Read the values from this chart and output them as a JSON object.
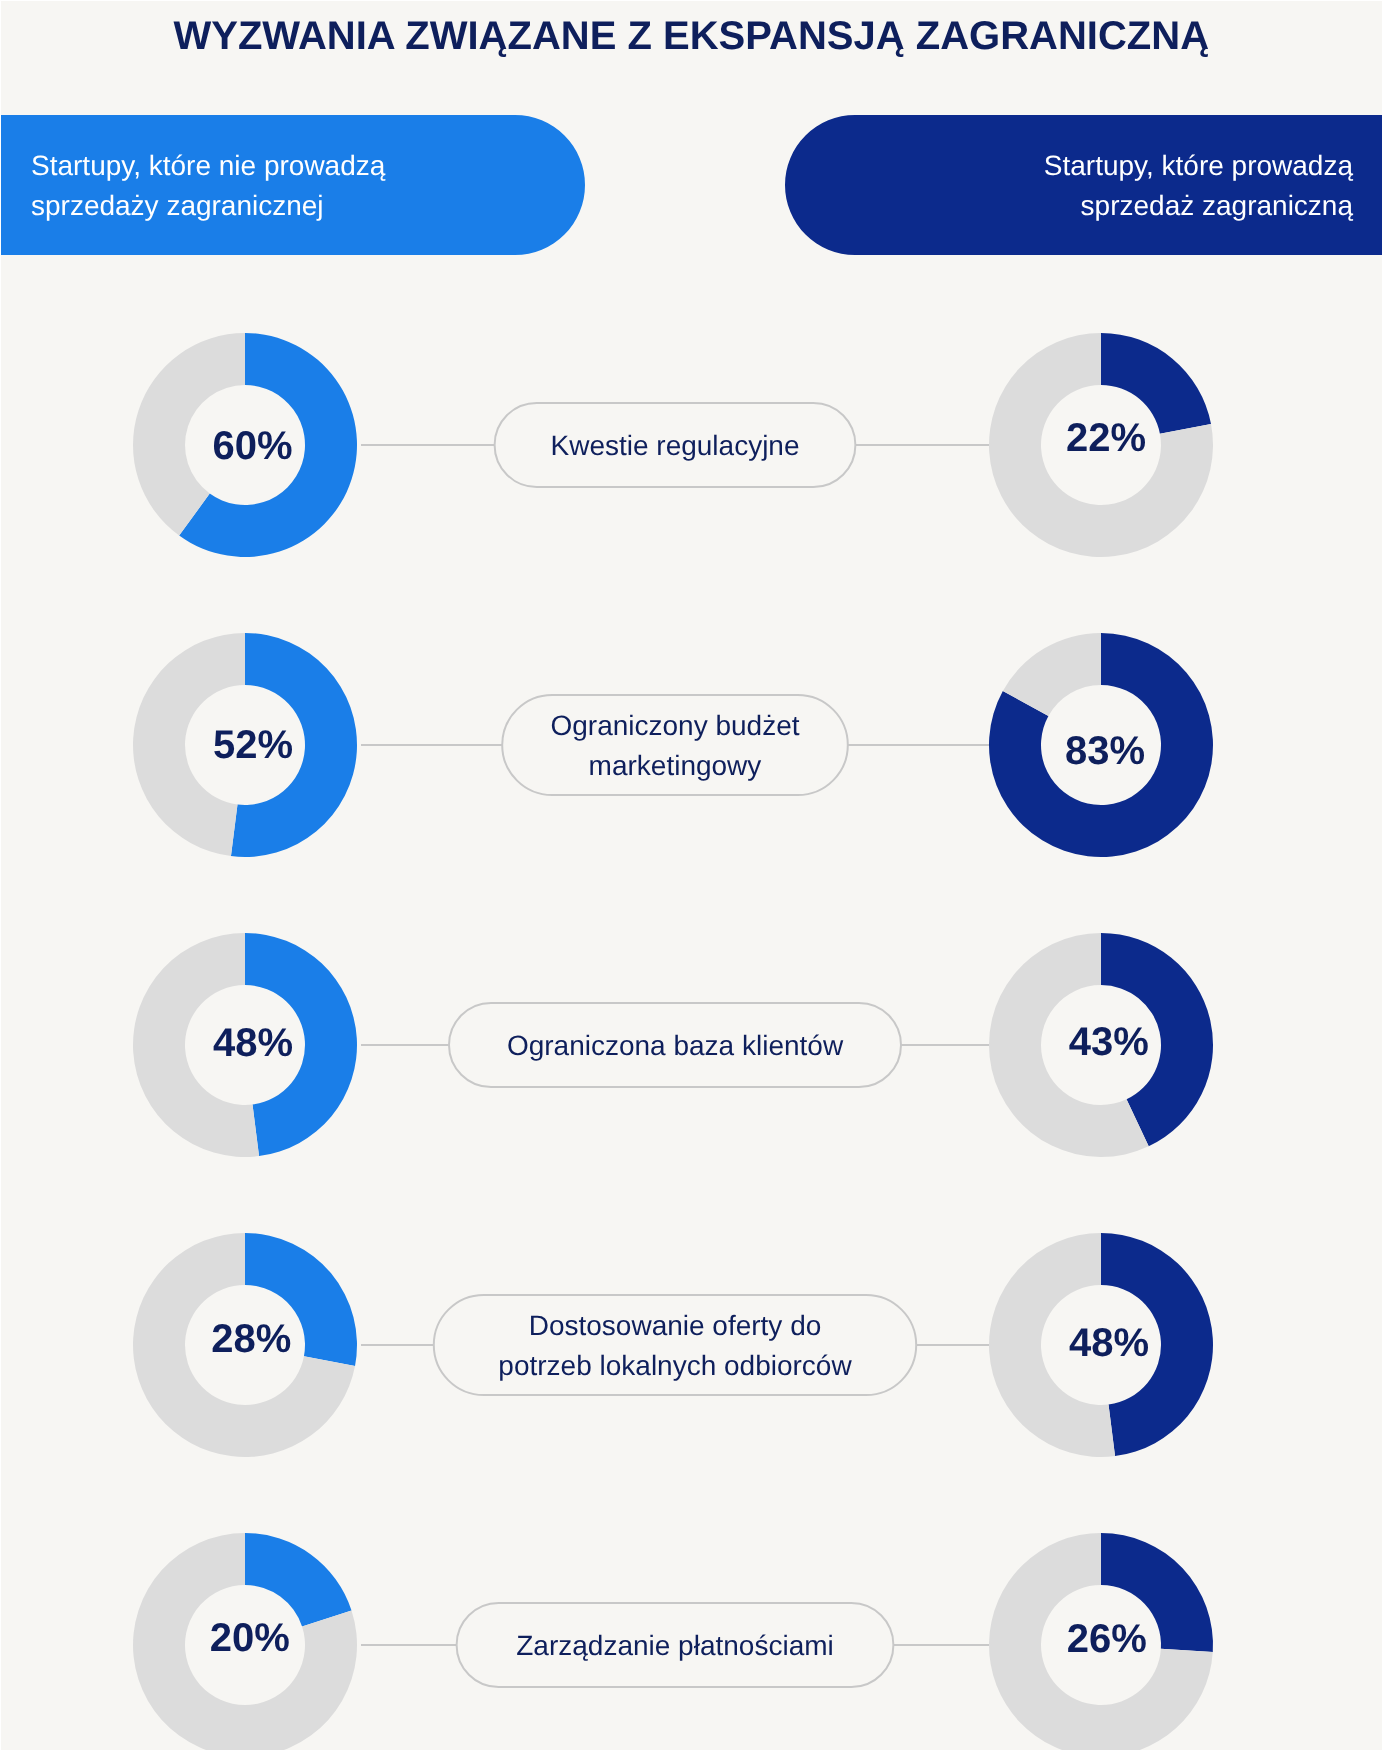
{
  "chart_data": [
    {
      "type": "other",
      "title": "WYZWANIA ZWIĄZANE Z EKSPANSJĄ ZAGRANICZNĄ",
      "annotations": [
        "Startupy, które nie prowadzą\nsprzedaży zagranicznej",
        "Startupy, które prowadzą\nsprzedaż zagraniczną",
        "Kwestie regulacyjne",
        "Ograniczony budżet\nmarketingowy",
        "Ograniczona baza klientów",
        "Dostosowanie oferty do\npotrzeb lokalnych odbiorców",
        "Zarządzanie płatnościami"
      ]
    },
    {
      "type": "donut",
      "categories": [
        null,
        null
      ],
      "values": [
        60,
        40
      ],
      "colors": [
        "#1a7ee8",
        "#dcdcdc"
      ],
      "value_labels": [
        "60%",
        null
      ]
    },
    {
      "type": "donut",
      "categories": [
        null,
        null
      ],
      "values": [
        22,
        78
      ],
      "colors": [
        "#0c2a8c",
        "#dcdcdc"
      ],
      "value_labels": [
        "22%",
        null
      ]
    },
    {
      "type": "donut",
      "categories": [
        null,
        null
      ],
      "values": [
        52,
        48
      ],
      "colors": [
        "#1a7ee8",
        "#dcdcdc"
      ],
      "value_labels": [
        "52%",
        null
      ]
    },
    {
      "type": "donut",
      "categories": [
        null,
        null
      ],
      "values": [
        83,
        17
      ],
      "colors": [
        "#0c2a8c",
        "#dcdcdc"
      ],
      "value_labels": [
        "83%",
        null
      ]
    },
    {
      "type": "donut",
      "categories": [
        null,
        null
      ],
      "values": [
        48,
        52
      ],
      "colors": [
        "#1a7ee8",
        "#dcdcdc"
      ],
      "value_labels": [
        "48%",
        null
      ]
    },
    {
      "type": "donut",
      "categories": [
        null,
        null
      ],
      "values": [
        43,
        57
      ],
      "colors": [
        "#0c2a8c",
        "#dcdcdc"
      ],
      "value_labels": [
        "43%",
        null
      ]
    },
    {
      "type": "donut",
      "categories": [
        null,
        null
      ],
      "values": [
        28,
        72
      ],
      "colors": [
        "#1a7ee8",
        "#dcdcdc"
      ],
      "value_labels": [
        "28%",
        null
      ]
    },
    {
      "type": "donut",
      "categories": [
        null,
        null
      ],
      "values": [
        48,
        52
      ],
      "colors": [
        "#0c2a8c",
        "#dcdcdc"
      ],
      "value_labels": [
        "48%",
        null
      ]
    },
    {
      "type": "donut",
      "categories": [
        null,
        null
      ],
      "values": [
        20,
        80
      ],
      "colors": [
        "#1a7ee8",
        "#dcdcdc"
      ],
      "value_labels": [
        "20%",
        null
      ]
    },
    {
      "type": "donut",
      "categories": [
        null,
        null
      ],
      "values": [
        26,
        74
      ],
      "colors": [
        "#0c2a8c",
        "#dcdcdc"
      ],
      "value_labels": [
        "26%",
        null
      ]
    }
  ]
}
